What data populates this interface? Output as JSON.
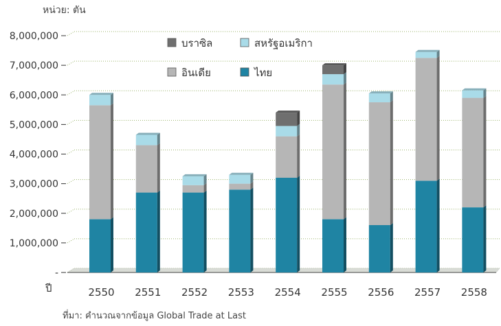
{
  "chart_data": {
    "type": "bar",
    "stacked": true,
    "unit_label": "หน่วย: ตัน",
    "x_axis_label": "ปี",
    "source_note": "ที่มา: คำนวณจากข้อมูล Global Trade at Last",
    "categories": [
      "2550",
      "2551",
      "2552",
      "2553",
      "2554",
      "2555",
      "2556",
      "2557",
      "2558"
    ],
    "series": [
      {
        "name": "ไทย",
        "color": "#1f84a3",
        "values": [
          1800000,
          2700000,
          2700000,
          2800000,
          3200000,
          1800000,
          1600000,
          3100000,
          2200000
        ]
      },
      {
        "name": "อินเดีย",
        "color": "#b6b6b6",
        "values": [
          3850000,
          1600000,
          250000,
          200000,
          1400000,
          4550000,
          4150000,
          4150000,
          3700000
        ]
      },
      {
        "name": "สหรัฐอเมริกา",
        "color": "#a9dbe8",
        "values": [
          350000,
          350000,
          300000,
          300000,
          350000,
          350000,
          300000,
          200000,
          250000
        ]
      },
      {
        "name": "บราซิล",
        "color": "#6f6f6f",
        "values": [
          0,
          0,
          0,
          0,
          450000,
          300000,
          0,
          0,
          0
        ]
      }
    ],
    "ylim": [
      0,
      8000000
    ],
    "yticks": [
      "-",
      "1,000,000",
      "2,000,000",
      "3,000,000",
      "4,000,000",
      "5,000,000",
      "6,000,000",
      "7,000,000",
      "8,000,000"
    ],
    "grid": true,
    "legend_position": "top",
    "legend_order": [
      "บราซิล",
      "สหรัฐอเมริกา",
      "อินเดีย",
      "ไทย"
    ]
  }
}
